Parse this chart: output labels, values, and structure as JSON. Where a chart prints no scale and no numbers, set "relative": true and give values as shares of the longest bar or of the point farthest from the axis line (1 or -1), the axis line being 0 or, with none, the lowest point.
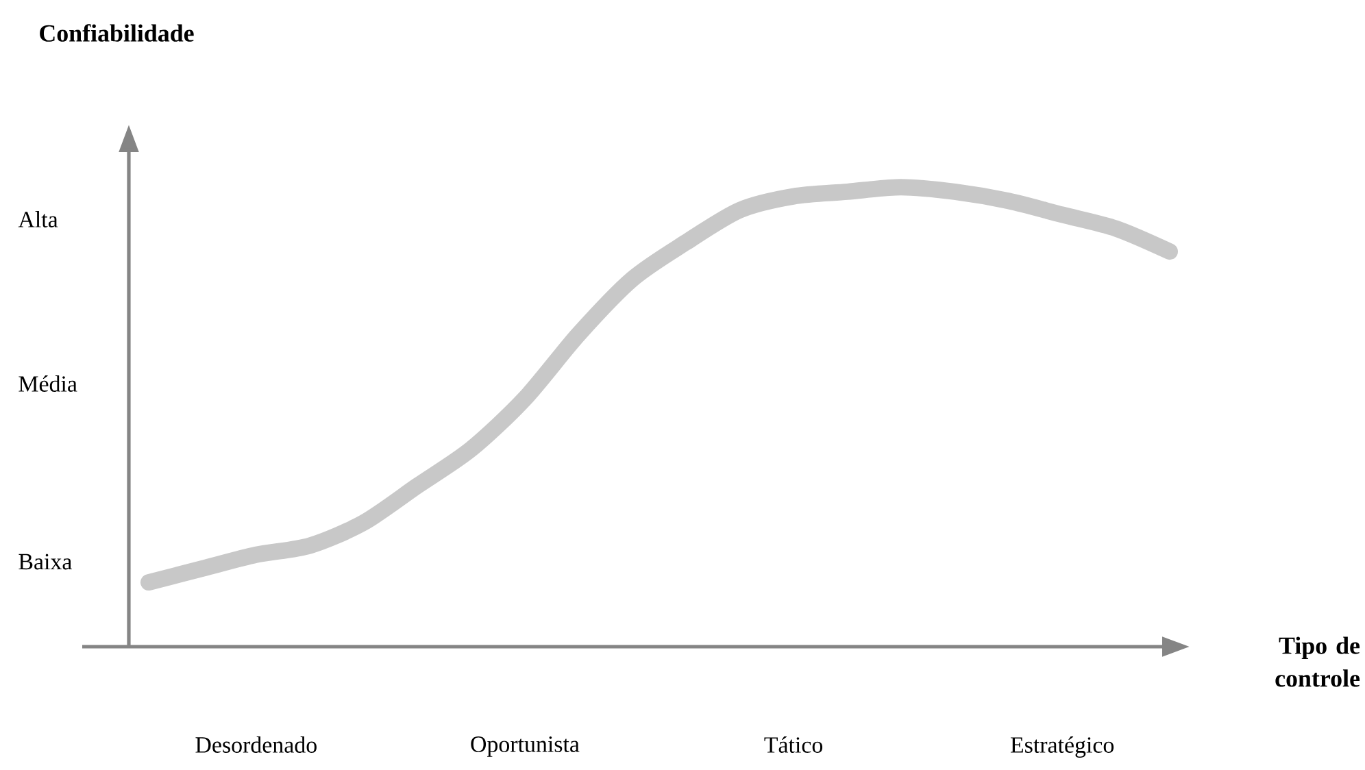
{
  "chart_data": {
    "type": "line",
    "relative": true,
    "xlabel": "Tipo de controle",
    "categories": [
      null,
      null,
      "Desordenado",
      null,
      null,
      null,
      null,
      "Oportunista",
      null,
      null,
      null,
      null,
      "Tático",
      null,
      null,
      null,
      null,
      "Estratégico",
      null,
      null
    ],
    "values": [
      0.14,
      0.17,
      0.2,
      0.22,
      0.27,
      0.35,
      0.43,
      0.54,
      0.68,
      0.8,
      0.88,
      0.95,
      0.98,
      0.99,
      1,
      0.99,
      0.97,
      0.94,
      0.91,
      0.86
    ],
    "color": "#c8c8c8",
    "annotations": [
      "Confiabilidade",
      "Baixa",
      "Média",
      "Alta"
    ]
  }
}
